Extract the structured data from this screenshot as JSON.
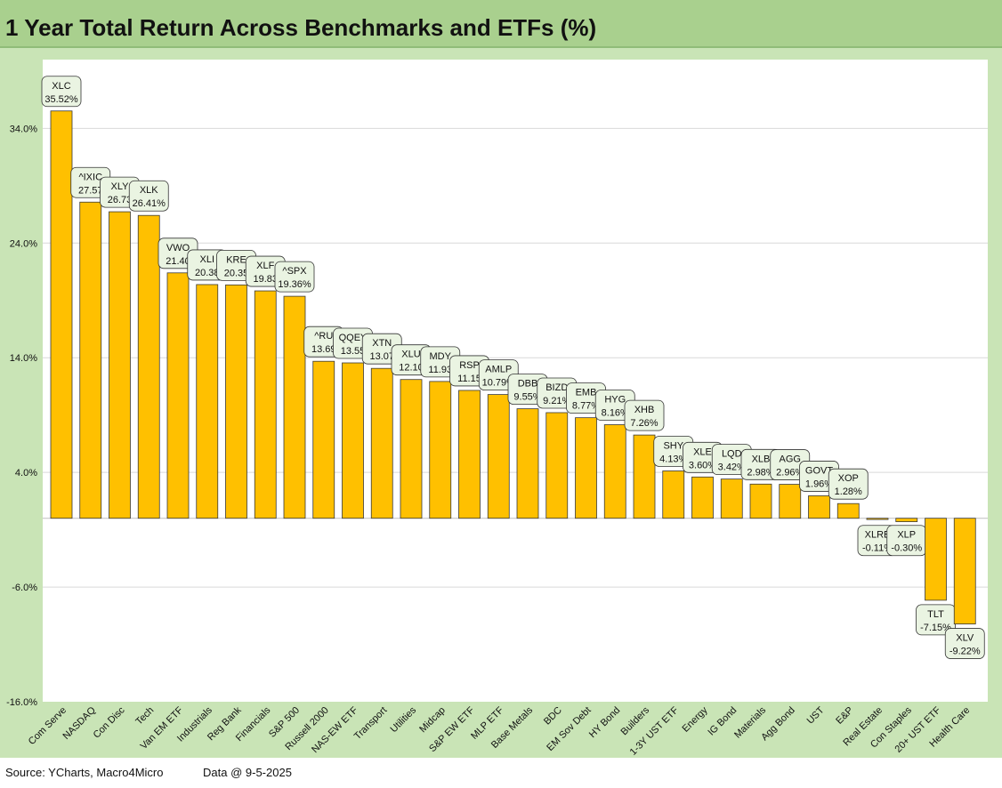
{
  "title": "1 Year Total Return Across Benchmarks and ETFs (%)",
  "footer": {
    "source": "Source: YCharts, Macro4Micro",
    "data_date": "Data @ 9-5-2025"
  },
  "colors": {
    "bar": "#ffc000",
    "title_bar": "#a9d08e",
    "frame": "#c9e4b6",
    "label_box": "#eaf4e2"
  },
  "chart_data": {
    "type": "bar",
    "title": "1 Year Total Return Across Benchmarks and ETFs (%)",
    "ylim": [
      -16,
      40
    ],
    "yticks": [
      -16,
      -6,
      4,
      14,
      24,
      34
    ],
    "ytick_labels": [
      "-16.0%",
      "-6.0%",
      "4.0%",
      "14.0%",
      "24.0%",
      "34.0%"
    ],
    "grid": true,
    "categories": [
      "Com Serve",
      "NASDAQ",
      "Con Disc",
      "Tech",
      "Van EM ETF",
      "Industrials",
      "Reg Bank",
      "Financials",
      "S&P 500",
      "Russell 2000",
      "NAS-EW ETF",
      "Transport",
      "Utilities",
      "Midcap",
      "S&P EW ETF",
      "MLP ETF",
      "Base Metals",
      "BDC",
      "EM Sov Debt",
      "HY Bond",
      "Builders",
      "1-3Y UST ETF",
      "Energy",
      "IG Bond",
      "Materials",
      "Agg Bond",
      "UST",
      "E&P",
      "Real Estate",
      "Con Staples",
      "20+ UST ETF",
      "Health Care"
    ],
    "tickers": [
      "XLC",
      "^IXIC",
      "XLY",
      "XLK",
      "VWO",
      "XLI",
      "KRE",
      "XLF",
      "^SPX",
      "^RUT",
      "QQEW",
      "XTN",
      "XLU",
      "MDY",
      "RSP",
      "AMLP",
      "DBB",
      "BIZD",
      "EMB",
      "HYG",
      "XHB",
      "SHY",
      "XLE",
      "LQD",
      "XLB",
      "AGG",
      "GOVT",
      "XOP",
      "XLRE",
      "XLP",
      "TLT",
      "XLV"
    ],
    "label_tickers": [
      "XLC",
      "^IXIC",
      "XLY",
      "XLK",
      "VWO",
      "XLI",
      "KRE",
      "XLF",
      "^SPX",
      "^RU",
      "QQEY",
      "XTN",
      "XLU",
      "MDY",
      "RSP",
      "AMLP",
      "DBB",
      "BIZD",
      "EMB",
      "HYG",
      "XHB",
      "SHY",
      "XLE",
      "LQD",
      "XLB",
      "AGG",
      "GOVT",
      "XOP",
      "XLRE",
      "XLP",
      "TLT",
      "XLV"
    ],
    "label_values": [
      "35.52%",
      "27.57",
      "26.73",
      "26.41%",
      "21.40",
      "20.38",
      "20.35",
      "19.83",
      "19.36%",
      "13.69",
      "13.55",
      "13.07",
      "12.10",
      "11.93",
      "11.15",
      "10.79%",
      "9.55%",
      "9.21%",
      "8.77%",
      "8.16%",
      "7.26%",
      "4.13%",
      "3.60%",
      "3.42%",
      "2.98%",
      "2.96%",
      "1.96%",
      "1.28%",
      "-0.11%",
      "-0.30%",
      "-7.15%",
      "-9.22%"
    ],
    "values": [
      35.52,
      27.57,
      26.73,
      26.41,
      21.4,
      20.38,
      20.35,
      19.83,
      19.36,
      13.69,
      13.55,
      13.07,
      12.1,
      11.93,
      11.15,
      10.79,
      9.55,
      9.21,
      8.77,
      8.16,
      7.26,
      4.13,
      3.6,
      3.42,
      2.98,
      2.96,
      1.96,
      1.28,
      -0.11,
      -0.3,
      -7.15,
      -9.22
    ]
  }
}
